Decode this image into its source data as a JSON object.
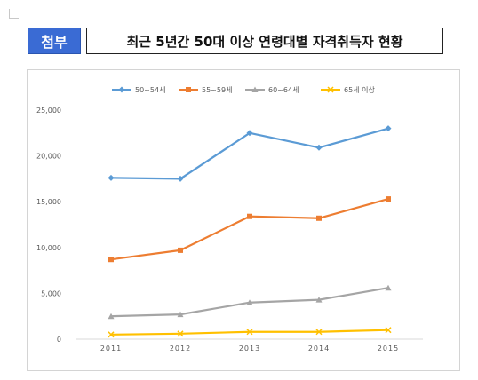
{
  "header": {
    "badge": "첨부",
    "title": "최근 5년간 50대 이상 연령대별 자격취득자 현황"
  },
  "chart_data": {
    "type": "line",
    "title": "",
    "xlabel": "",
    "ylabel": "",
    "categories": [
      "2011",
      "2012",
      "2013",
      "2014",
      "2015"
    ],
    "ylim": [
      0,
      25000
    ],
    "yticks": [
      0,
      5000,
      10000,
      15000,
      20000,
      25000
    ],
    "ytick_labels": [
      "0",
      "5,000",
      "10,000",
      "15,000",
      "20,000",
      "25,000"
    ],
    "grid": false,
    "legend_position": "top",
    "series": [
      {
        "name": "50~54세",
        "color": "#5b9bd5",
        "marker": "diamond",
        "values": [
          17600,
          17500,
          22500,
          20900,
          23000
        ]
      },
      {
        "name": "55~59세",
        "color": "#ed7d31",
        "marker": "square",
        "values": [
          8700,
          9700,
          13400,
          13200,
          15300
        ]
      },
      {
        "name": "60~64세",
        "color": "#a5a5a5",
        "marker": "triangle",
        "values": [
          2500,
          2700,
          4000,
          4300,
          5600
        ]
      },
      {
        "name": "65세 이상",
        "color": "#ffc000",
        "marker": "x",
        "values": [
          500,
          600,
          800,
          800,
          1000
        ]
      }
    ]
  }
}
